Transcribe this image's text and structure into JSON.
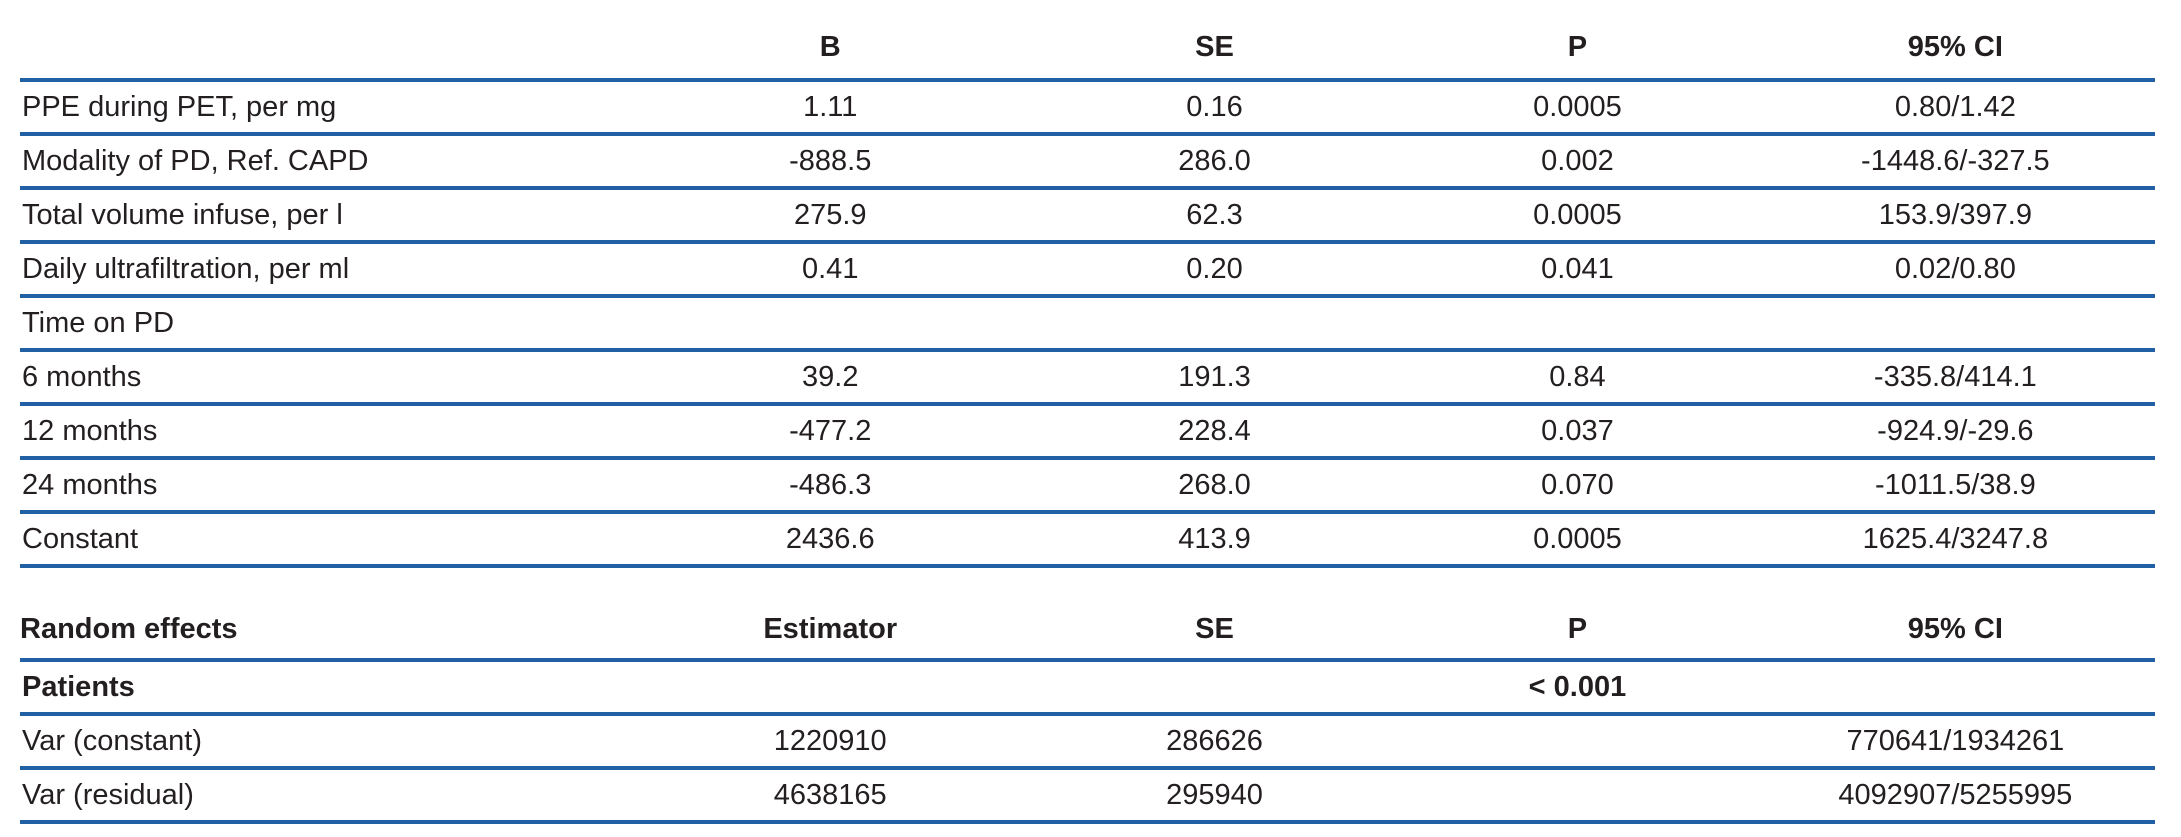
{
  "colors": {
    "rule_blue": "#2160a4",
    "text": "#231f20",
    "background": "#ffffff"
  },
  "fixed_effects_table": {
    "headers": [
      "",
      "B",
      "SE",
      "P",
      "95% CI"
    ],
    "rows": [
      {
        "label": "PPE during PET, per mg",
        "b": "1.11",
        "se": "0.16",
        "p": "0.0005",
        "ci": "0.80/1.42"
      },
      {
        "label": "Modality of PD, Ref. CAPD",
        "b": "-888.5",
        "se": "286.0",
        "p": "0.002",
        "ci": "-1448.6/-327.5"
      },
      {
        "label": "Total volume infuse, per l",
        "b": "275.9",
        "se": "62.3",
        "p": "0.0005",
        "ci": "153.9/397.9"
      },
      {
        "label": "Daily ultrafiltration, per ml",
        "b": "0.41",
        "se": "0.20",
        "p": "0.041",
        "ci": "0.02/0.80"
      },
      {
        "label": "Time on PD",
        "b": "",
        "se": "",
        "p": "",
        "ci": ""
      },
      {
        "label": "6 months",
        "b": "39.2",
        "se": "191.3",
        "p": "0.84",
        "ci": "-335.8/414.1"
      },
      {
        "label": "12 months",
        "b": "-477.2",
        "se": "228.4",
        "p": "0.037",
        "ci": "-924.9/-29.6"
      },
      {
        "label": "24 months",
        "b": "-486.3",
        "se": "268.0",
        "p": "0.070",
        "ci": "-1011.5/38.9"
      },
      {
        "label": "Constant",
        "b": "2436.6",
        "se": "413.9",
        "p": "0.0005",
        "ci": "1625.4/3247.8"
      }
    ]
  },
  "random_effects_table": {
    "headers": [
      "Random effects",
      "Estimator",
      "SE",
      "P",
      "95% CI"
    ],
    "rows": [
      {
        "label": "Patients",
        "b": "",
        "se": "",
        "p": "< 0.001",
        "ci": "",
        "bold": true
      },
      {
        "label": "Var (constant)",
        "b": "1220910",
        "se": "286626",
        "p": "",
        "ci": "770641/1934261"
      },
      {
        "label": "Var (residual)",
        "b": "4638165",
        "se": "295940",
        "p": "",
        "ci": "4092907/5255995"
      }
    ]
  }
}
